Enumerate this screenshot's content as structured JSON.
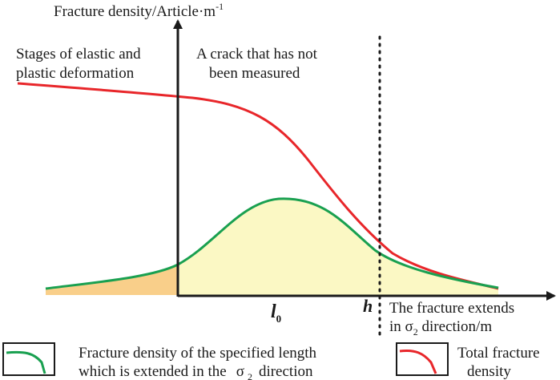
{
  "axes": {
    "y_label": "Fracture density/Article·m",
    "y_label_sup": "-1",
    "x_label_line1": "The fracture extends",
    "x_label_line2_pre": "in σ",
    "x_label_line2_sub": "2",
    "x_label_line2_post": " direction/m",
    "origin_marker": "l",
    "origin_marker_sub": "0",
    "h_marker": "h"
  },
  "annotations": {
    "left_line1": "Stages of elastic and",
    "left_line2": "plastic deformation",
    "right_line1": "A crack that has not",
    "right_line2": "been measured"
  },
  "legend": {
    "item1_line1": "Fracture density of the specified length",
    "item1_line2_pre": "which is extended in the",
    "item1_line2_sigma": "σ",
    "item1_line2_sub": "2",
    "item1_line2_post": "direction",
    "item2_line1": "Total fracture",
    "item2_line2": "density"
  },
  "colors": {
    "total_density": "#e8262a",
    "specified_length_density": "#19a050",
    "fill_elastic_stage": "#f9cf8a",
    "fill_unmeasured": "#fbf8c4",
    "axis": "#1a1a1a"
  }
}
